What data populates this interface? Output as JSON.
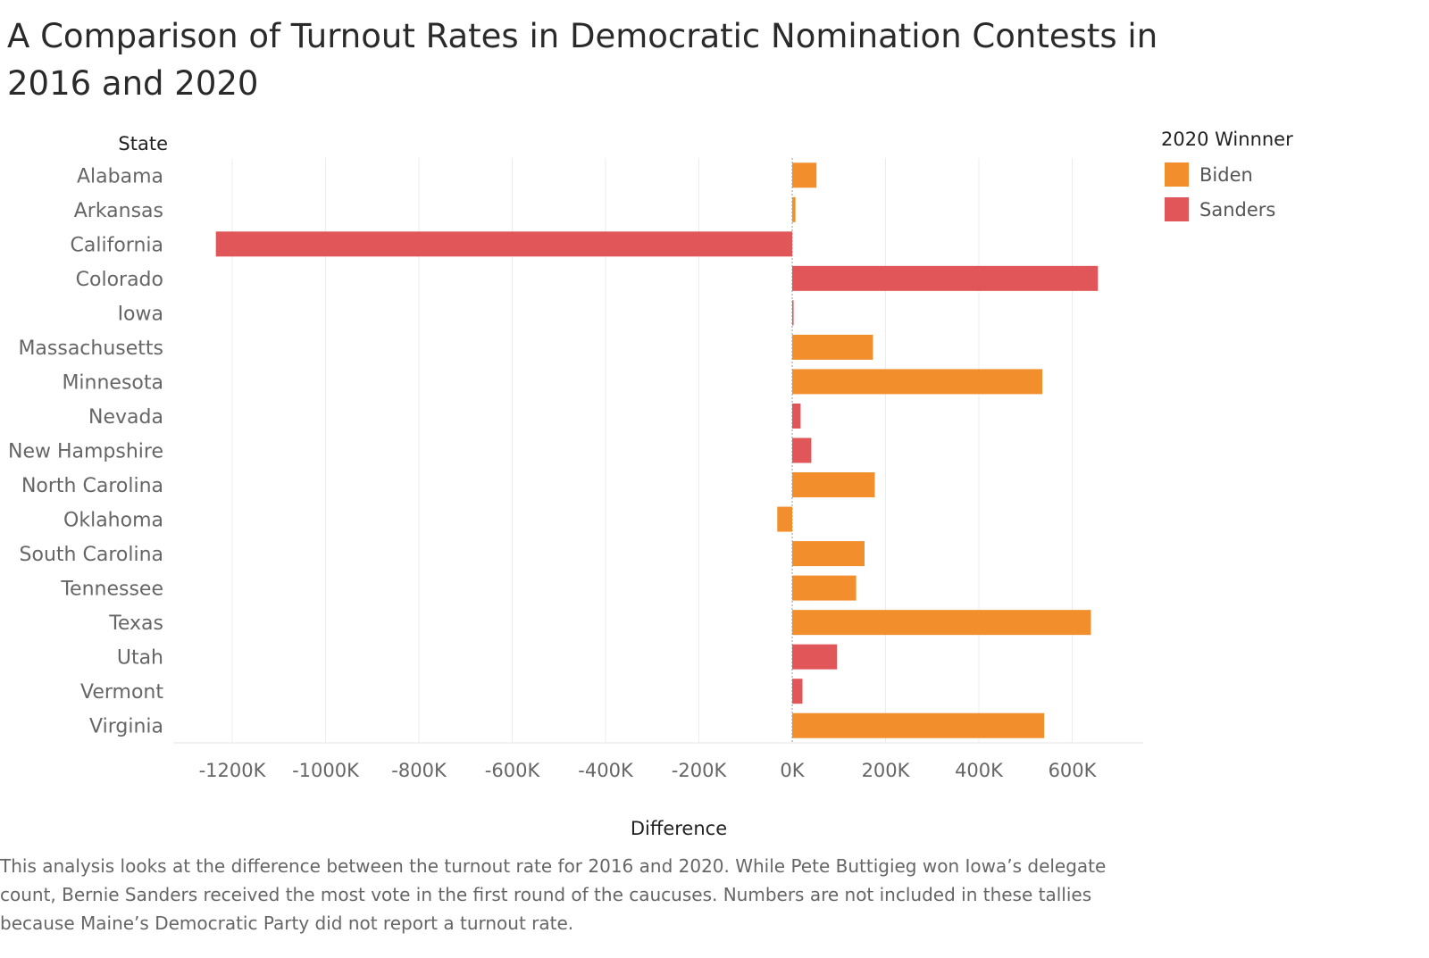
{
  "title": "A Comparison of Turnout Rates in Democratic Nomination Contests in 2016 and 2020",
  "caption": "This analysis looks at the difference between the turnout rate for 2016 and 2020. While Pete Buttigieg won Iowa’s delegate count, Bernie Sanders received the most vote in the first round of the caucuses. Numbers are not included in these tallies because Maine’s Democratic Party did not report a turnout rate.",
  "legend": {
    "title": "2020 Winnner",
    "items": [
      {
        "label": "Biden",
        "color": "#f28e2b"
      },
      {
        "label": "Sanders",
        "color": "#e15759"
      }
    ]
  },
  "chart_data": {
    "type": "bar",
    "orientation": "horizontal",
    "ylabel": "State",
    "xlabel": "Difference",
    "xlim": [
      -1320000,
      750000
    ],
    "xticks": [
      -1200000,
      -1000000,
      -800000,
      -600000,
      -400000,
      -200000,
      0,
      200000,
      400000,
      600000
    ],
    "xtick_labels": [
      "-1200K",
      "-1000K",
      "-800K",
      "-600K",
      "-400K",
      "-200K",
      "0K",
      "200K",
      "400K",
      "600K"
    ],
    "grid": "vertical",
    "legend_position": "right",
    "series_colors": {
      "Biden": "#f28e2b",
      "Sanders": "#e15759"
    },
    "categories": [
      "Alabama",
      "Arkansas",
      "California",
      "Colorado",
      "Iowa",
      "Massachusetts",
      "Minnesota",
      "Nevada",
      "New Hampshire",
      "North Carolina",
      "Oklahoma",
      "South Carolina",
      "Tennessee",
      "Texas",
      "Utah",
      "Vermont",
      "Virginia"
    ],
    "values": [
      52000,
      7000,
      -1235000,
      655000,
      3000,
      173000,
      536000,
      18000,
      41000,
      177000,
      -32000,
      155000,
      137000,
      640000,
      96000,
      22000,
      540000
    ],
    "winners": [
      "Biden",
      "Biden",
      "Sanders",
      "Sanders",
      "Sanders",
      "Biden",
      "Biden",
      "Sanders",
      "Sanders",
      "Biden",
      "Biden",
      "Biden",
      "Biden",
      "Biden",
      "Sanders",
      "Sanders",
      "Biden"
    ]
  }
}
